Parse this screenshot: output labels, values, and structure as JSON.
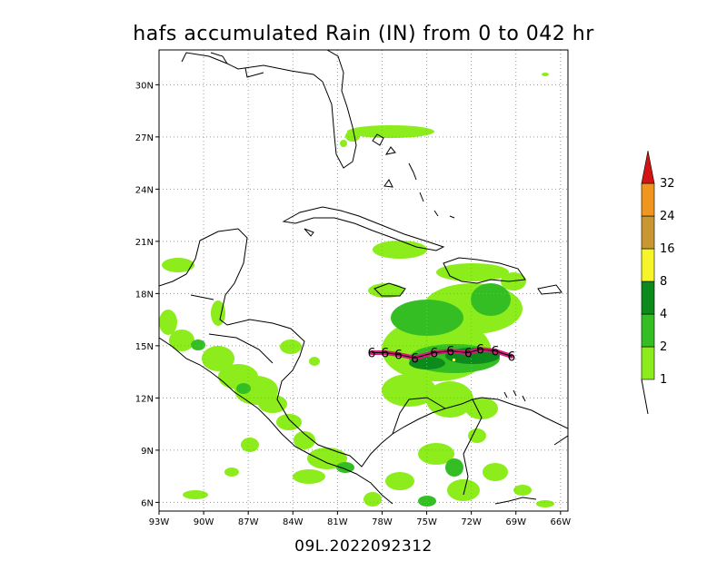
{
  "title": "hafs accumulated Rain (IN) from 0 to 042 hr",
  "subtitle": "09L.2022092312",
  "map": {
    "lon_range": [
      -93,
      -65.5
    ],
    "lat_range": [
      5.5,
      32
    ],
    "lon_ticks": [
      {
        "value": -93,
        "label": "93W"
      },
      {
        "value": -90,
        "label": "90W"
      },
      {
        "value": -87,
        "label": "87W"
      },
      {
        "value": -84,
        "label": "84W"
      },
      {
        "value": -81,
        "label": "81W"
      },
      {
        "value": -78,
        "label": "78W"
      },
      {
        "value": -75,
        "label": "75W"
      },
      {
        "value": -72,
        "label": "72W"
      },
      {
        "value": -69,
        "label": "69W"
      },
      {
        "value": -66,
        "label": "66W"
      }
    ],
    "lat_ticks": [
      {
        "value": 6,
        "label": "6N"
      },
      {
        "value": 9,
        "label": "9N"
      },
      {
        "value": 12,
        "label": "12N"
      },
      {
        "value": 15,
        "label": "15N"
      },
      {
        "value": 18,
        "label": "18N"
      },
      {
        "value": 21,
        "label": "21N"
      },
      {
        "value": 24,
        "label": "24N"
      },
      {
        "value": 27,
        "label": "27N"
      },
      {
        "value": 30,
        "label": "30N"
      }
    ],
    "grid": true,
    "track_symbol": "6",
    "track": [
      {
        "lon": -78.7,
        "lat": 14.6
      },
      {
        "lon": -77.8,
        "lat": 14.6
      },
      {
        "lon": -76.9,
        "lat": 14.5
      },
      {
        "lon": -75.8,
        "lat": 14.3
      },
      {
        "lon": -74.5,
        "lat": 14.6
      },
      {
        "lon": -73.4,
        "lat": 14.7
      },
      {
        "lon": -72.2,
        "lat": 14.6
      },
      {
        "lon": -71.4,
        "lat": 14.8
      },
      {
        "lon": -70.4,
        "lat": 14.7
      },
      {
        "lon": -69.3,
        "lat": 14.4
      }
    ]
  },
  "colorbar": {
    "levels": [
      "1",
      "2",
      "4",
      "8",
      "16",
      "24",
      "32"
    ],
    "colors": [
      "#8cec1c",
      "#35be24",
      "#0d8a1c",
      "#f5f52a",
      "#c89632",
      "#f0961e",
      "#d21414"
    ],
    "extend": "max"
  }
}
